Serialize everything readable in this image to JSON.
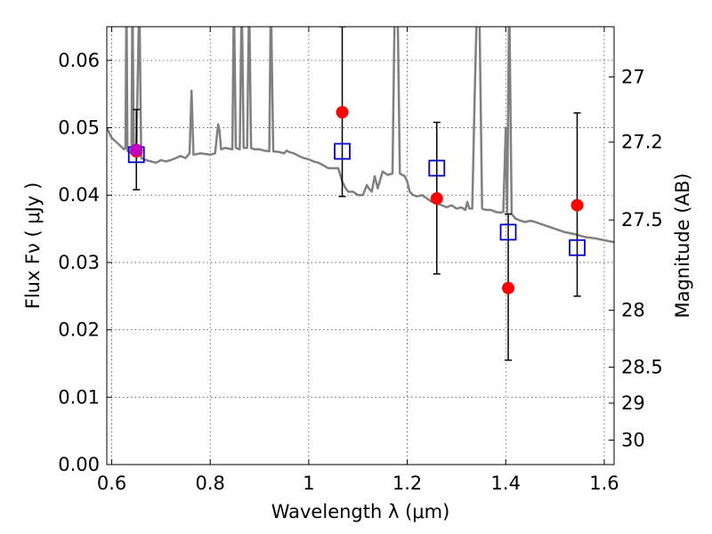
{
  "chart_data": {
    "type": "scatter",
    "xlabel": "Wavelength  λ (μm)",
    "ylabel": "Flux  Fν (  μJy )",
    "ylabel2": "Magnitude (AB)",
    "xlim": [
      0.59,
      1.62
    ],
    "ylim": [
      0.0,
      0.065
    ],
    "grid": true,
    "x_ticks": [
      0.6,
      0.8,
      1.0,
      1.2,
      1.4,
      1.6
    ],
    "x_tick_labels": [
      "0.6",
      "0.8",
      "1",
      "1.2",
      "1.4",
      "1.6"
    ],
    "y_ticks": [
      0.0,
      0.01,
      0.02,
      0.03,
      0.04,
      0.05,
      0.06
    ],
    "y_tick_labels": [
      "0.00",
      "0.01",
      "0.02",
      "0.03",
      "0.04",
      "0.05",
      "0.06"
    ],
    "mag_ticks": [
      27,
      27.2,
      27.5,
      28,
      28.5,
      29,
      30
    ],
    "mag_tick_labels": [
      "27",
      "27.2",
      "27.5",
      "28",
      "28.5",
      "29",
      "30"
    ],
    "model_spectrum": {
      "color": "#808080",
      "points": [
        [
          0.59,
          0.05
        ],
        [
          0.6,
          0.0485
        ],
        [
          0.615,
          0.0475
        ],
        [
          0.625,
          0.0468
        ],
        [
          0.628,
          0.047
        ],
        [
          0.63,
          0.07
        ],
        [
          0.632,
          0.0466
        ],
        [
          0.64,
          0.0462
        ],
        [
          0.642,
          0.07
        ],
        [
          0.645,
          0.046
        ],
        [
          0.65,
          0.0458
        ],
        [
          0.656,
          0.07
        ],
        [
          0.66,
          0.0455
        ],
        [
          0.67,
          0.0452
        ],
        [
          0.68,
          0.045
        ],
        [
          0.69,
          0.0448
        ],
        [
          0.7,
          0.0452
        ],
        [
          0.71,
          0.045
        ],
        [
          0.72,
          0.0452
        ],
        [
          0.73,
          0.0455
        ],
        [
          0.74,
          0.0458
        ],
        [
          0.75,
          0.0455
        ],
        [
          0.758,
          0.0462
        ],
        [
          0.762,
          0.0555
        ],
        [
          0.766,
          0.046
        ],
        [
          0.78,
          0.0462
        ],
        [
          0.8,
          0.046
        ],
        [
          0.81,
          0.0462
        ],
        [
          0.816,
          0.0505
        ],
        [
          0.819,
          0.0495
        ],
        [
          0.822,
          0.0468
        ],
        [
          0.83,
          0.047
        ],
        [
          0.845,
          0.0468
        ],
        [
          0.848,
          0.07
        ],
        [
          0.852,
          0.047
        ],
        [
          0.86,
          0.0468
        ],
        [
          0.864,
          0.07
        ],
        [
          0.868,
          0.047
        ],
        [
          0.875,
          0.047
        ],
        [
          0.879,
          0.07
        ],
        [
          0.883,
          0.047
        ],
        [
          0.89,
          0.0468
        ],
        [
          0.9,
          0.0468
        ],
        [
          0.91,
          0.0466
        ],
        [
          0.92,
          0.0465
        ],
        [
          0.923,
          0.07
        ],
        [
          0.928,
          0.0465
        ],
        [
          0.94,
          0.0464
        ],
        [
          0.95,
          0.0462
        ],
        [
          0.955,
          0.0466
        ],
        [
          0.96,
          0.0464
        ],
        [
          0.97,
          0.0462
        ],
        [
          0.98,
          0.0458
        ],
        [
          0.99,
          0.0455
        ],
        [
          1.0,
          0.0453
        ],
        [
          1.01,
          0.045
        ],
        [
          1.02,
          0.0448
        ],
        [
          1.03,
          0.0444
        ],
        [
          1.04,
          0.044
        ],
        [
          1.05,
          0.044
        ],
        [
          1.06,
          0.044
        ],
        [
          1.068,
          0.042
        ],
        [
          1.075,
          0.041
        ],
        [
          1.08,
          0.0405
        ],
        [
          1.09,
          0.0405
        ],
        [
          1.1,
          0.04
        ],
        [
          1.11,
          0.04
        ],
        [
          1.118,
          0.0415
        ],
        [
          1.122,
          0.041
        ],
        [
          1.128,
          0.0405
        ],
        [
          1.134,
          0.0428
        ],
        [
          1.14,
          0.041
        ],
        [
          1.15,
          0.0435
        ],
        [
          1.16,
          0.043
        ],
        [
          1.17,
          0.0432
        ],
        [
          1.175,
          0.07
        ],
        [
          1.18,
          0.07
        ],
        [
          1.185,
          0.0432
        ],
        [
          1.195,
          0.0428
        ],
        [
          1.2,
          0.042
        ],
        [
          1.205,
          0.0405
        ],
        [
          1.212,
          0.04
        ],
        [
          1.22,
          0.0398
        ],
        [
          1.23,
          0.04
        ],
        [
          1.24,
          0.0395
        ],
        [
          1.25,
          0.039
        ],
        [
          1.26,
          0.0388
        ],
        [
          1.27,
          0.0385
        ],
        [
          1.28,
          0.0382
        ],
        [
          1.29,
          0.0385
        ],
        [
          1.3,
          0.038
        ],
        [
          1.31,
          0.0382
        ],
        [
          1.318,
          0.0378
        ],
        [
          1.322,
          0.039
        ],
        [
          1.326,
          0.038
        ],
        [
          1.332,
          0.038
        ],
        [
          1.337,
          0.055
        ],
        [
          1.342,
          0.07
        ],
        [
          1.346,
          0.07
        ],
        [
          1.352,
          0.038
        ],
        [
          1.36,
          0.0378
        ],
        [
          1.37,
          0.0378
        ],
        [
          1.38,
          0.0375
        ],
        [
          1.39,
          0.0374
        ],
        [
          1.395,
          0.0375
        ],
        [
          1.4,
          0.05
        ],
        [
          1.403,
          0.0375
        ],
        [
          1.407,
          0.07
        ],
        [
          1.412,
          0.0372
        ],
        [
          1.42,
          0.0365
        ],
        [
          1.43,
          0.0362
        ],
        [
          1.44,
          0.036
        ],
        [
          1.45,
          0.0362
        ],
        [
          1.46,
          0.036
        ],
        [
          1.48,
          0.0355
        ],
        [
          1.5,
          0.035
        ],
        [
          1.52,
          0.0345
        ],
        [
          1.54,
          0.0342
        ],
        [
          1.56,
          0.0338
        ],
        [
          1.58,
          0.0336
        ],
        [
          1.6,
          0.0333
        ],
        [
          1.62,
          0.033
        ]
      ]
    },
    "observed": {
      "color": "#ff0000",
      "marker": "circle",
      "points": [
        {
          "x": 0.65,
          "y": 0.0465,
          "yerr_low": 0.0408,
          "yerr_high": 0.0527
        },
        {
          "x": 1.068,
          "y": 0.0523,
          "yerr_low": 0.0398,
          "yerr_high": 0.065
        },
        {
          "x": 1.26,
          "y": 0.0395,
          "yerr_low": 0.0283,
          "yerr_high": 0.0508
        },
        {
          "x": 1.405,
          "y": 0.0262,
          "yerr_low": 0.0155,
          "yerr_high": 0.0372
        },
        {
          "x": 1.545,
          "y": 0.0385,
          "yerr_low": 0.025,
          "yerr_high": 0.0522
        }
      ]
    },
    "model_photometry": {
      "color": "#0000cc",
      "marker": "open-square",
      "points": [
        {
          "x": 0.65,
          "y": 0.046
        },
        {
          "x": 1.068,
          "y": 0.0465
        },
        {
          "x": 1.26,
          "y": 0.044
        },
        {
          "x": 1.405,
          "y": 0.0345
        },
        {
          "x": 1.545,
          "y": 0.0322
        }
      ]
    },
    "highlight_point": {
      "x": 0.65,
      "y": 0.0467,
      "color": "#c000c0"
    }
  }
}
